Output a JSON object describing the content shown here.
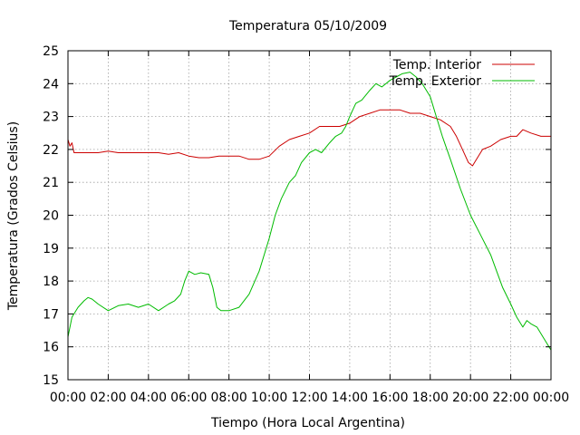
{
  "chart_data": {
    "type": "line",
    "title": "Temperatura 05/10/2009",
    "xlabel": "Tiempo (Hora Local Argentina)",
    "ylabel": "Temperatura (Grados Celsius)",
    "xlim": [
      0,
      24
    ],
    "ylim": [
      15,
      25
    ],
    "x_ticks": [
      0,
      2,
      4,
      6,
      8,
      10,
      12,
      14,
      16,
      18,
      20,
      22,
      24
    ],
    "x_tick_labels": [
      "00:00",
      "02:00",
      "04:00",
      "06:00",
      "08:00",
      "10:00",
      "12:00",
      "14:00",
      "16:00",
      "18:00",
      "20:00",
      "22:00",
      "00:00"
    ],
    "y_ticks": [
      15,
      16,
      17,
      18,
      19,
      20,
      21,
      22,
      23,
      24,
      25
    ],
    "y_tick_labels": [
      "15",
      "16",
      "17",
      "18",
      "19",
      "20",
      "21",
      "22",
      "23",
      "24",
      "25"
    ],
    "grid": true,
    "legend_position": "top-right",
    "series": [
      {
        "name": "Temp. Interior",
        "color": "#cc0000",
        "x": [
          0,
          0.1,
          0.2,
          0.3,
          0.5,
          0.8,
          1.0,
          1.5,
          2.0,
          2.5,
          3.0,
          3.5,
          4.0,
          4.5,
          5.0,
          5.5,
          6.0,
          6.5,
          7.0,
          7.5,
          8.0,
          8.5,
          9.0,
          9.5,
          10.0,
          10.5,
          11.0,
          11.5,
          12.0,
          12.5,
          13.0,
          13.5,
          14.0,
          14.5,
          15.0,
          15.5,
          16.0,
          16.5,
          17.0,
          17.5,
          18.0,
          18.5,
          19.0,
          19.3,
          19.6,
          19.9,
          20.1,
          20.3,
          20.6,
          21.0,
          21.5,
          22.0,
          22.3,
          22.6,
          23.0,
          23.5,
          24.0
        ],
        "y": [
          22.3,
          22.1,
          22.2,
          21.9,
          21.9,
          21.9,
          21.9,
          21.9,
          21.95,
          21.9,
          21.9,
          21.9,
          21.9,
          21.9,
          21.85,
          21.9,
          21.8,
          21.75,
          21.75,
          21.8,
          21.8,
          21.8,
          21.7,
          21.7,
          21.8,
          22.1,
          22.3,
          22.4,
          22.5,
          22.7,
          22.7,
          22.7,
          22.8,
          23.0,
          23.1,
          23.2,
          23.2,
          23.2,
          23.1,
          23.1,
          23.0,
          22.9,
          22.7,
          22.4,
          22.0,
          21.6,
          21.5,
          21.7,
          22.0,
          22.1,
          22.3,
          22.4,
          22.4,
          22.6,
          22.5,
          22.4,
          22.4
        ]
      },
      {
        "name": "Temp. Exterior",
        "color": "#00bb00",
        "x": [
          0,
          0.2,
          0.5,
          0.8,
          1.0,
          1.2,
          1.5,
          2.0,
          2.5,
          3.0,
          3.5,
          4.0,
          4.5,
          5.0,
          5.3,
          5.6,
          5.8,
          6.0,
          6.3,
          6.6,
          7.0,
          7.2,
          7.4,
          7.6,
          8.0,
          8.5,
          9.0,
          9.5,
          10.0,
          10.3,
          10.6,
          11.0,
          11.3,
          11.6,
          12.0,
          12.3,
          12.6,
          13.0,
          13.3,
          13.6,
          13.8,
          14.0,
          14.3,
          14.6,
          15.0,
          15.3,
          15.6,
          16.0,
          16.3,
          16.6,
          17.0,
          17.3,
          17.6,
          18.0,
          18.3,
          18.6,
          19.0,
          19.5,
          20.0,
          20.5,
          21.0,
          21.3,
          21.6,
          22.0,
          22.3,
          22.6,
          22.8,
          23.0,
          23.3,
          23.6,
          24.0
        ],
        "y": [
          16.3,
          16.9,
          17.2,
          17.4,
          17.5,
          17.45,
          17.3,
          17.1,
          17.25,
          17.3,
          17.2,
          17.3,
          17.1,
          17.3,
          17.4,
          17.6,
          18.0,
          18.3,
          18.2,
          18.25,
          18.2,
          17.8,
          17.2,
          17.1,
          17.1,
          17.2,
          17.6,
          18.3,
          19.3,
          20.0,
          20.5,
          21.0,
          21.2,
          21.6,
          21.9,
          22.0,
          21.9,
          22.2,
          22.4,
          22.5,
          22.7,
          23.0,
          23.4,
          23.5,
          23.8,
          24.0,
          23.9,
          24.1,
          24.2,
          24.3,
          24.35,
          24.2,
          24.0,
          23.6,
          23.0,
          22.4,
          21.7,
          20.8,
          20.0,
          19.4,
          18.8,
          18.3,
          17.8,
          17.3,
          16.9,
          16.6,
          16.8,
          16.7,
          16.6,
          16.3,
          15.9
        ]
      }
    ]
  }
}
